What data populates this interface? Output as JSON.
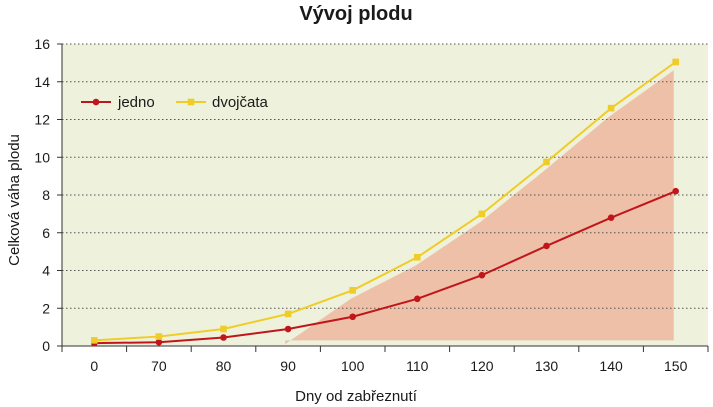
{
  "chart_data": {
    "type": "line",
    "title": "Vývoj plodu",
    "xlabel": "Dny od zabřeznutí",
    "ylabel": "Celková váha plodu",
    "categories": [
      "0",
      "70",
      "80",
      "90",
      "100",
      "110",
      "120",
      "130",
      "140",
      "150"
    ],
    "ylim": [
      0,
      16
    ],
    "yticks": [
      0,
      2,
      4,
      6,
      8,
      10,
      12,
      14,
      16
    ],
    "grid": true,
    "legend_position": "top-left",
    "series": [
      {
        "name": "jedno",
        "values": [
          0.15,
          0.2,
          0.45,
          0.9,
          1.55,
          2.5,
          3.75,
          5.3,
          6.8,
          8.2
        ]
      },
      {
        "name": "dvojčata",
        "values": [
          0.3,
          0.5,
          0.9,
          1.7,
          2.95,
          4.7,
          7.0,
          9.75,
          12.6,
          15.05
        ]
      }
    ],
    "shaded_region": {
      "from_category": "90",
      "to_category": "150"
    }
  },
  "colors": {
    "background": "#eef1dc",
    "shade": "#eec0a8",
    "jedno": "#c0161b",
    "dvojcata": "#f0cc28",
    "grid": "#555555",
    "axis": "#333333"
  }
}
